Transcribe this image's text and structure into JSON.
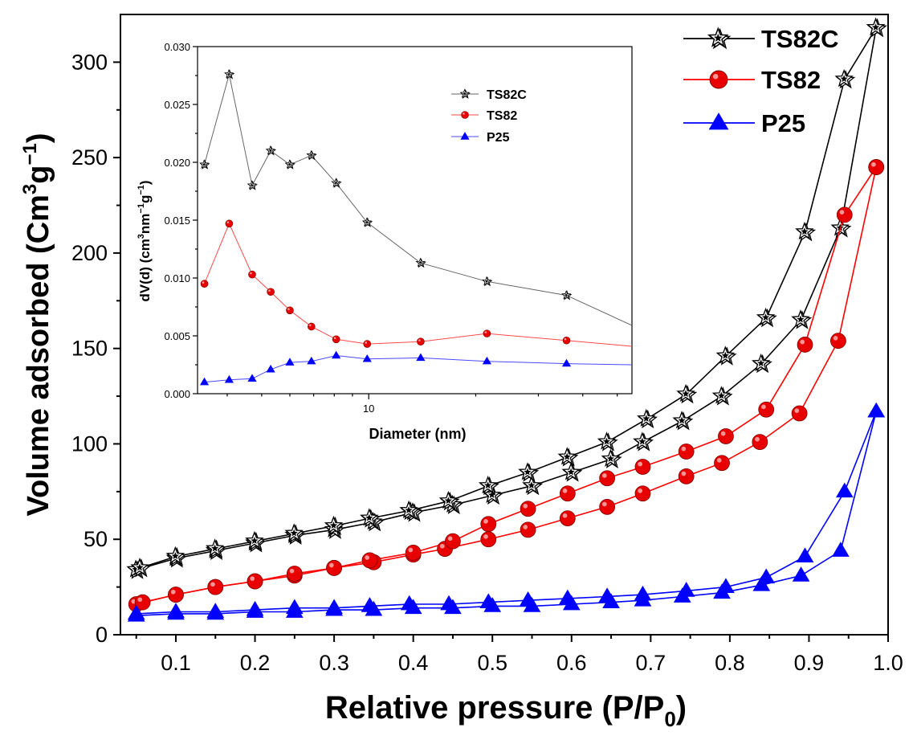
{
  "chart_data": [
    {
      "type": "line",
      "title": "",
      "xlabel": "Relative pressure (P/P",
      "xlabel_sub": "0",
      "xlabel_tail": ")",
      "ylabel": "Volume adsorbed (Cm",
      "ylabel_sup1": "3",
      "ylabel_mid": "g",
      "ylabel_sup2": "−1",
      "ylabel_tail": ")",
      "xlim": [
        0.03,
        1.0
      ],
      "ylim": [
        0,
        325
      ],
      "x_ticks": [
        "0.1",
        "0.2",
        "0.3",
        "0.4",
        "0.5",
        "0.6",
        "0.7",
        "0.8",
        "0.9",
        "1.0"
      ],
      "y_ticks": [
        "0",
        "50",
        "100",
        "150",
        "200",
        "250",
        "300"
      ],
      "legend_position": "top-right",
      "series": [
        {
          "name": "TS82C",
          "color": "#000000",
          "marker": "star",
          "adsorption": {
            "x": [
              0.05,
              0.1,
              0.15,
              0.2,
              0.25,
              0.3,
              0.35,
              0.4,
              0.45,
              0.5,
              0.55,
              0.6,
              0.65,
              0.69,
              0.74,
              0.79,
              0.84,
              0.89,
              0.94,
              0.985
            ],
            "y": [
              34,
              40,
              44,
              48,
              52,
              55,
              59,
              64,
              68,
              73,
              78,
              85,
              92,
              101,
              112,
              125,
              142,
              165,
              213,
              318
            ]
          },
          "desorption": {
            "x": [
              0.985,
              0.945,
              0.895,
              0.846,
              0.795,
              0.745,
              0.695,
              0.645,
              0.595,
              0.545,
              0.495,
              0.445,
              0.395,
              0.345,
              0.3,
              0.25,
              0.2,
              0.15,
              0.1,
              0.055
            ],
            "y": [
              318,
              291,
              211,
              166,
              146,
              126,
              113,
              101,
              93,
              85,
              78,
              70,
              65,
              61,
              57,
              53,
              49,
              45,
              41,
              35
            ]
          }
        },
        {
          "name": "TS82",
          "color": "#ff0000",
          "marker": "circle",
          "adsorption": {
            "x": [
              0.05,
              0.1,
              0.15,
              0.2,
              0.25,
              0.3,
              0.35,
              0.4,
              0.44,
              0.495,
              0.545,
              0.595,
              0.645,
              0.69,
              0.745,
              0.79,
              0.838,
              0.888,
              0.937,
              0.985
            ],
            "y": [
              16,
              21,
              25,
              28,
              31,
              35,
              38,
              42,
              45,
              50,
              55,
              61,
              67,
              74,
              83,
              90,
              101,
              116,
              154,
              245
            ]
          },
          "desorption": {
            "x": [
              0.985,
              0.945,
              0.895,
              0.846,
              0.795,
              0.745,
              0.69,
              0.645,
              0.595,
              0.545,
              0.495,
              0.45,
              0.4,
              0.345,
              0.3,
              0.25,
              0.2,
              0.15,
              0.1,
              0.058
            ],
            "y": [
              245,
              220,
              152,
              118,
              104,
              96,
              88,
              82,
              74,
              66,
              58,
              49,
              43,
              39,
              35,
              32,
              28,
              25,
              21,
              17
            ]
          }
        },
        {
          "name": "P25",
          "color": "#0000ff",
          "marker": "triangle",
          "adsorption": {
            "x": [
              0.05,
              0.1,
              0.15,
              0.2,
              0.25,
              0.3,
              0.35,
              0.4,
              0.45,
              0.5,
              0.55,
              0.6,
              0.65,
              0.69,
              0.74,
              0.79,
              0.84,
              0.89,
              0.94,
              0.985
            ],
            "y": [
              10,
              11,
              11,
              12,
              12,
              13,
              13,
              14,
              14,
              15,
              15,
              16,
              17,
              18,
              20,
              22,
              26,
              31,
              44,
              117
            ]
          },
          "desorption": {
            "x": [
              0.985,
              0.945,
              0.895,
              0.846,
              0.795,
              0.745,
              0.69,
              0.645,
              0.595,
              0.545,
              0.495,
              0.445,
              0.395,
              0.345,
              0.3,
              0.25,
              0.2,
              0.15,
              0.1,
              0.05
            ],
            "y": [
              117,
              75,
              41,
              30,
              25,
              23,
              21,
              20,
              19,
              18,
              17,
              16,
              16,
              15,
              14,
              14,
              13,
              12,
              12,
              11
            ]
          }
        }
      ]
    },
    {
      "type": "line",
      "title": "",
      "xlabel": "Diameter (nm)",
      "ylabel": "dV(d) (cm",
      "ylabel_sup1": "3",
      "ylabel_mid": "nm",
      "ylabel_sup2": "−1",
      "ylabel_mid2": "g",
      "ylabel_sup3": "−1",
      "ylabel_tail": ")",
      "x_scale": "log",
      "xlim": [
        3.3,
        55
      ],
      "ylim": [
        0,
        0.03
      ],
      "x_ticks": [
        "10"
      ],
      "y_ticks": [
        "0.000",
        "0.005",
        "0.010",
        "0.015",
        "0.020",
        "0.025",
        "0.030"
      ],
      "legend_position": "top-center",
      "series": [
        {
          "name": "TS82C",
          "color": "#000000",
          "marker": "star",
          "x": [
            3.45,
            4.05,
            4.7,
            5.3,
            6.0,
            6.9,
            8.1,
            9.9,
            14.0,
            21.5,
            36.0,
            55.0
          ],
          "y": [
            0.0198,
            0.0276,
            0.018,
            0.021,
            0.0198,
            0.0206,
            0.0182,
            0.0148,
            0.0113,
            0.0097,
            0.0085,
            0.0059
          ]
        },
        {
          "name": "TS82",
          "color": "#ff0000",
          "marker": "circle",
          "x": [
            3.45,
            4.05,
            4.7,
            5.3,
            6.0,
            6.9,
            8.1,
            9.9,
            14.0,
            21.5,
            36.0,
            55.0
          ],
          "y": [
            0.0095,
            0.0147,
            0.0103,
            0.0088,
            0.0072,
            0.0058,
            0.0047,
            0.0043,
            0.0045,
            0.0052,
            0.0046,
            0.0041
          ]
        },
        {
          "name": "P25",
          "color": "#0000ff",
          "marker": "triangle",
          "x": [
            3.45,
            4.05,
            4.7,
            5.3,
            6.0,
            6.9,
            8.1,
            9.9,
            14.0,
            21.5,
            36.0,
            55.0
          ],
          "y": [
            0.001,
            0.0012,
            0.0013,
            0.0021,
            0.0027,
            0.0028,
            0.0033,
            0.003,
            0.0031,
            0.0028,
            0.0026,
            0.0025
          ]
        }
      ]
    }
  ]
}
